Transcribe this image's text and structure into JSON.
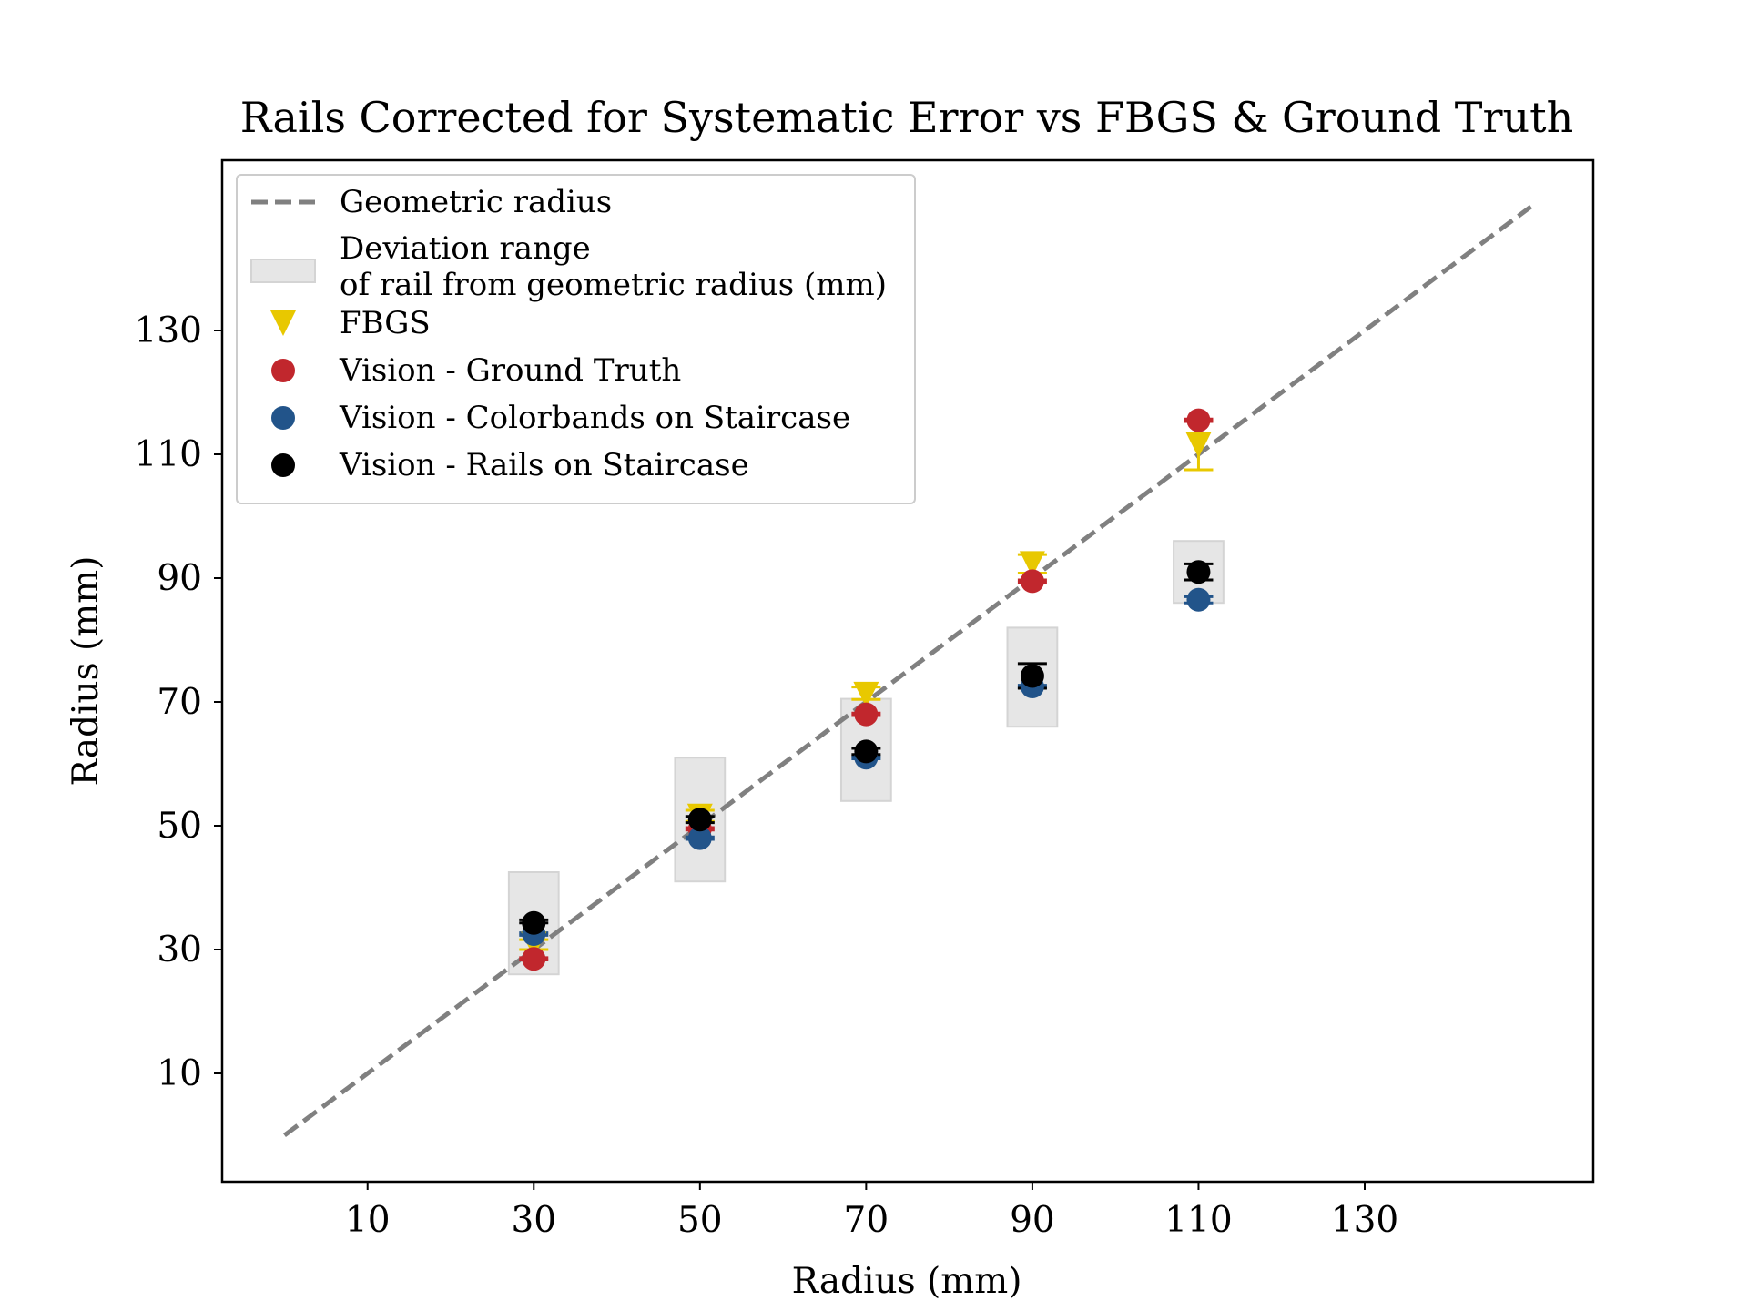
{
  "chart_data": {
    "type": "scatter",
    "title": "Rails Corrected for Systematic Error vs FBGS & Ground Truth",
    "xlabel": "Radius (mm)",
    "ylabel": "Radius (mm)",
    "xlim": [
      -7.5,
      157.5
    ],
    "ylim": [
      -7.5,
      157.5
    ],
    "xticks": [
      10,
      30,
      50,
      70,
      90,
      110,
      130
    ],
    "yticks": [
      10,
      30,
      50,
      70,
      90,
      110,
      130
    ],
    "grid": false,
    "legend_position": "top-left",
    "reference_line": {
      "name": "Geometric radius",
      "x": [
        0,
        150
      ],
      "y": [
        0,
        150
      ],
      "color": "#808080",
      "style": "dashed"
    },
    "deviation_ranges": {
      "name": "Deviation range\nof rail from geometric radius (mm)",
      "color": "#e6e6e6",
      "x": [
        30,
        50,
        70,
        90,
        110
      ],
      "half_width": 3,
      "low": [
        26,
        41,
        54,
        66,
        86
      ],
      "high": [
        42.5,
        61,
        70.5,
        82,
        96
      ]
    },
    "series": [
      {
        "name": "FBGS",
        "marker": "triangle-down",
        "color": "#e8c800",
        "x": [
          30,
          50,
          70,
          90,
          110
        ],
        "y": [
          30.8,
          51.5,
          71.2,
          92.3,
          111.5
        ],
        "yerr_low": [
          0.8,
          0.8,
          0.8,
          1.5,
          4
        ],
        "yerr_high": [
          0.8,
          1,
          1.2,
          1.5,
          4
        ]
      },
      {
        "name": "Vision - Ground Truth",
        "marker": "circle",
        "color": "#c1272d",
        "x": [
          30,
          50,
          70,
          90,
          110
        ],
        "y": [
          28.5,
          49.5,
          68,
          89.5,
          115.5
        ],
        "yerr_low": [
          0.2,
          0.2,
          0.2,
          0.2,
          0.2
        ],
        "yerr_high": [
          0.2,
          0.2,
          0.2,
          0.2,
          0.2
        ]
      },
      {
        "name": "Vision - Colorbands on Staircase",
        "marker": "circle",
        "color": "#22548a",
        "x": [
          30,
          50,
          70,
          90,
          110
        ],
        "y": [
          32.5,
          48,
          61,
          72.5,
          86.5
        ],
        "yerr_low": [
          0.2,
          0.2,
          0.2,
          0.2,
          0.5
        ],
        "yerr_high": [
          0.2,
          0.2,
          0.2,
          0.2,
          0.5
        ]
      },
      {
        "name": "Vision - Rails on Staircase",
        "marker": "circle",
        "color": "#000000",
        "x": [
          30,
          50,
          70,
          90,
          110
        ],
        "y": [
          34.3,
          51,
          62,
          74.2,
          91
        ],
        "yerr_low": [
          0,
          0.5,
          0.5,
          2,
          1.3
        ],
        "yerr_high": [
          0.5,
          0.5,
          0.5,
          2,
          1.3
        ]
      }
    ]
  }
}
